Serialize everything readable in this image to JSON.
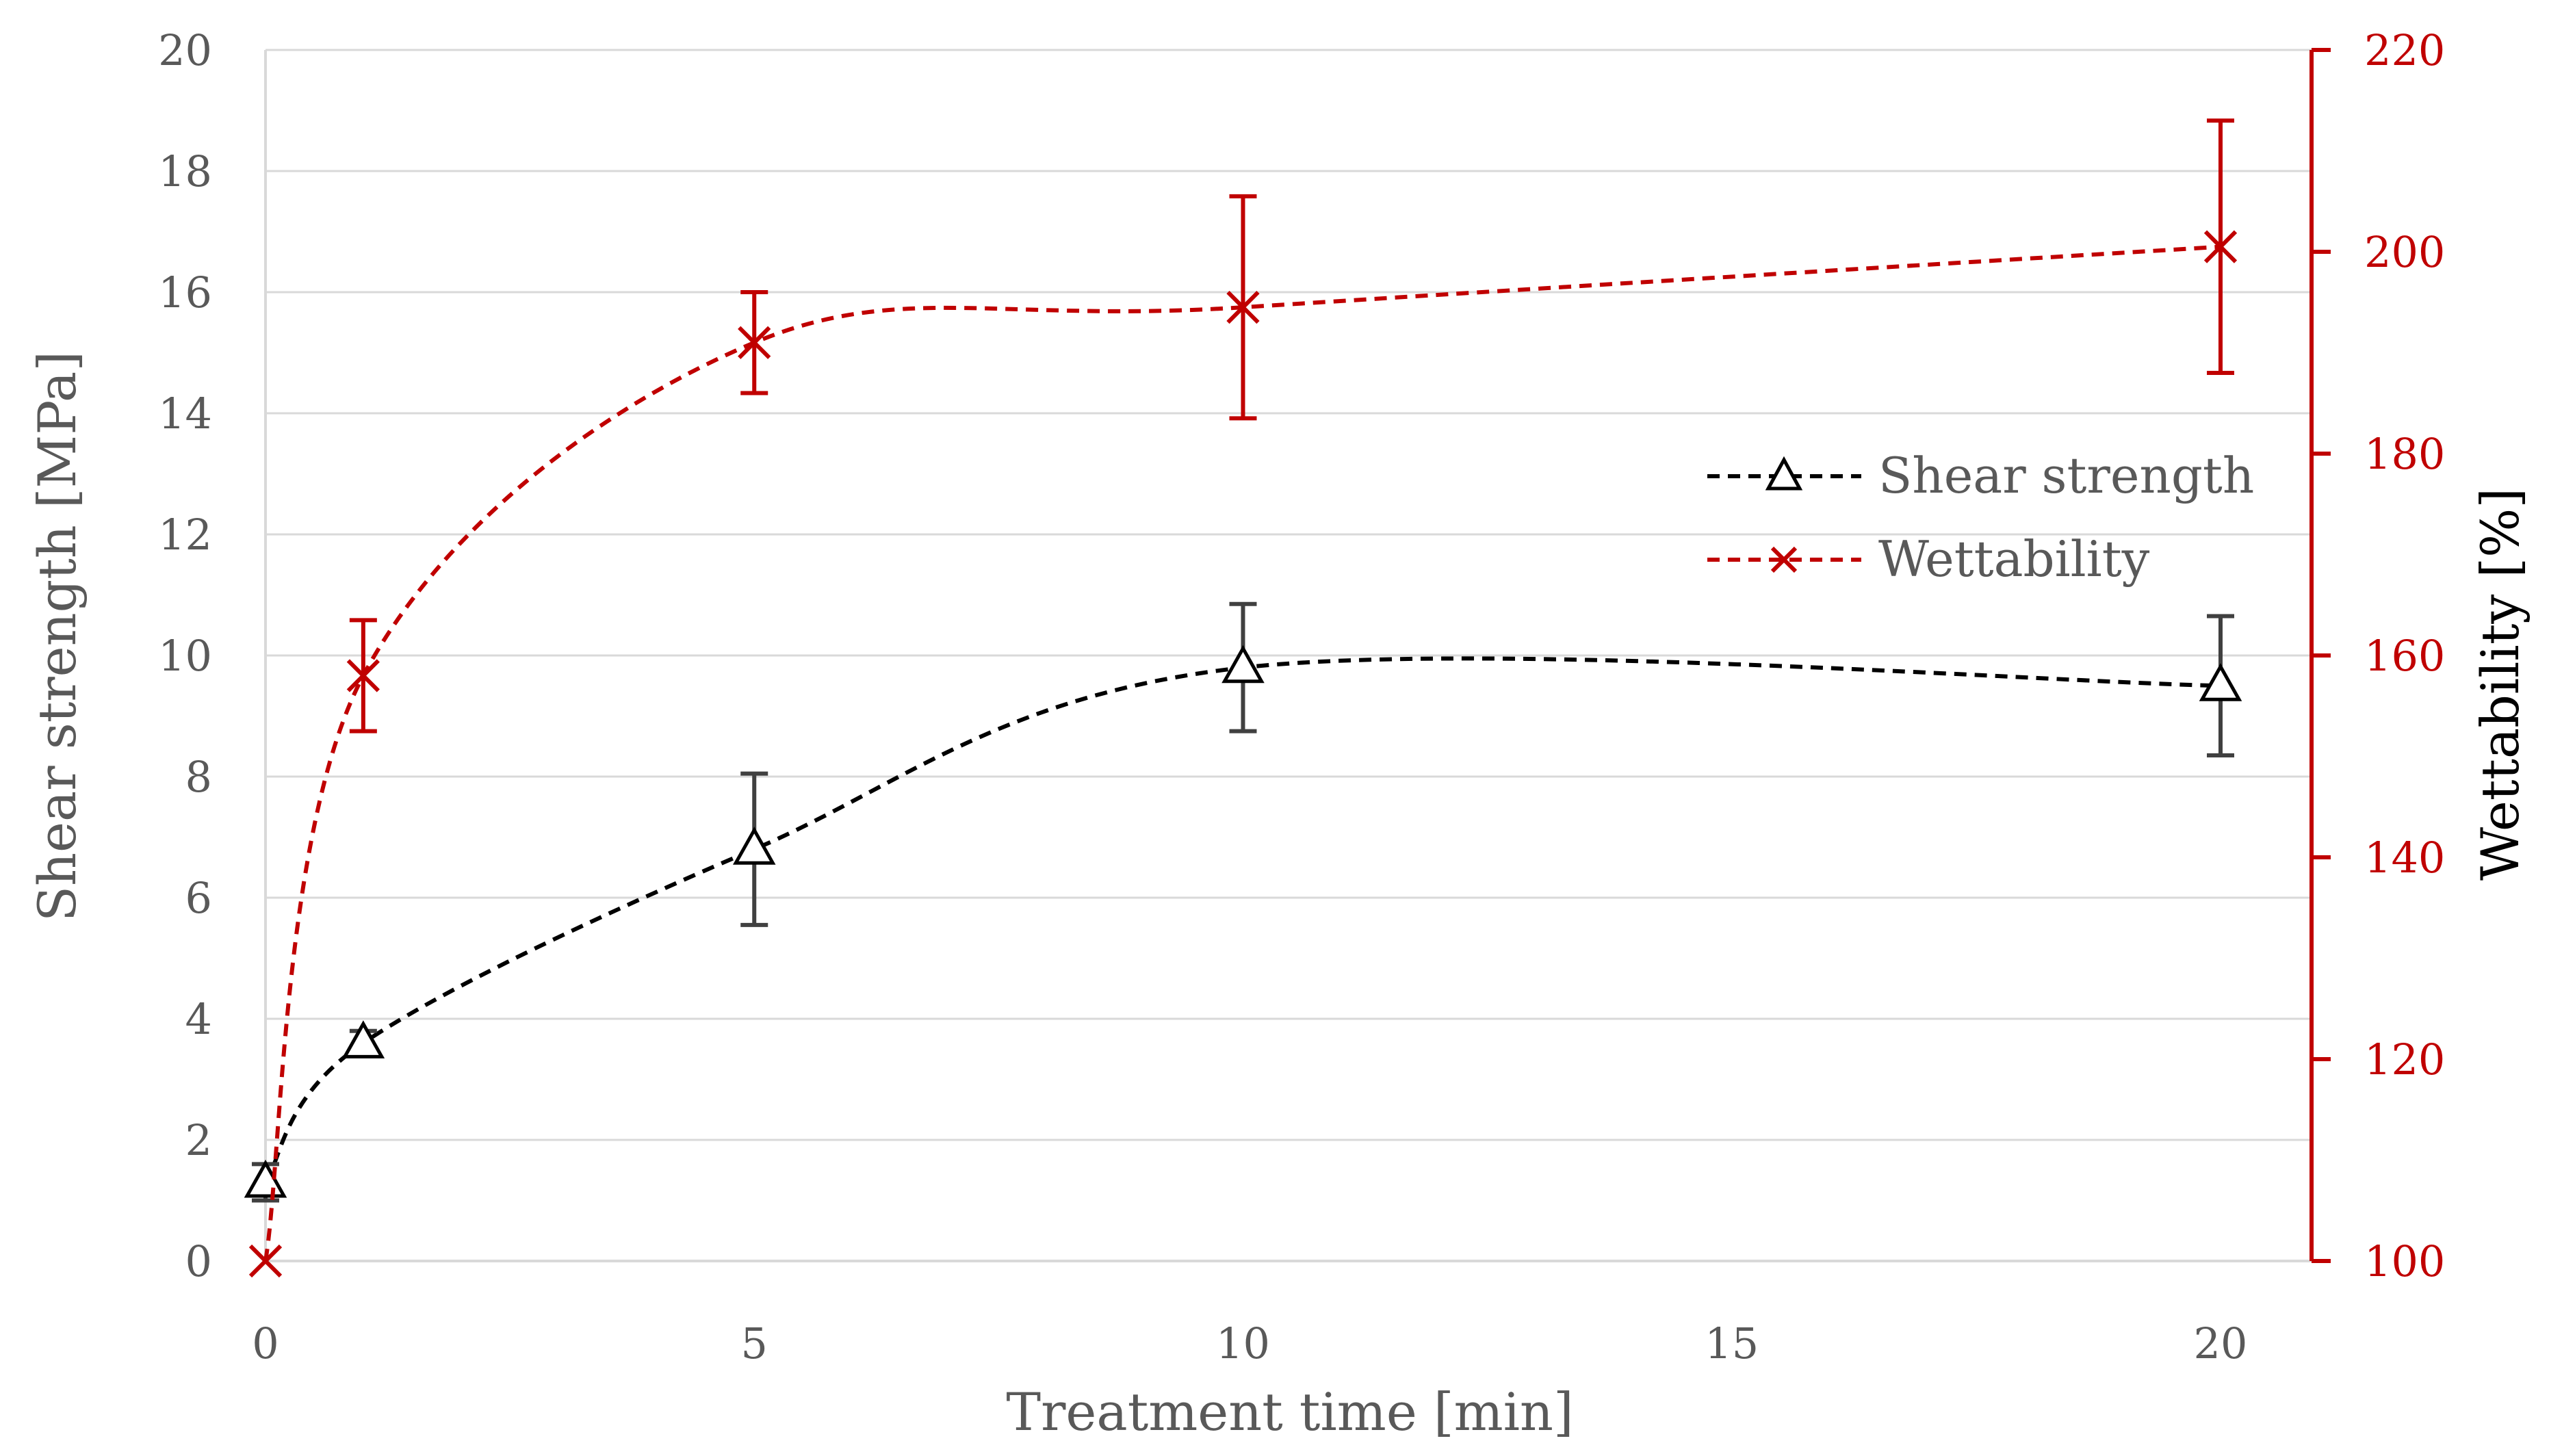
{
  "chart_data": {
    "type": "line",
    "title": "",
    "xlabel": "Treatment time [min]",
    "ylabel_left": "Shear strength [MPa]",
    "ylabel_right": "Wettability [%]",
    "xlim": [
      0,
      21
    ],
    "ylim_left": [
      0,
      20
    ],
    "ylim_right": [
      100,
      220
    ],
    "x_ticks": [
      "0",
      "5",
      "10",
      "15",
      "20"
    ],
    "y_left_ticks": [
      "0",
      "2",
      "4",
      "6",
      "8",
      "10",
      "12",
      "14",
      "16",
      "18",
      "20"
    ],
    "y_right_ticks": [
      "100",
      "120",
      "140",
      "160",
      "180",
      "200",
      "220"
    ],
    "grid": true,
    "legend_position": "right-center",
    "series": [
      {
        "name": "Shear strength",
        "axis": "left",
        "marker": "triangle",
        "line_style": "dashed smooth",
        "color": "#000000",
        "x": [
          0,
          1,
          5,
          10,
          20
        ],
        "values": [
          1.3,
          3.6,
          6.8,
          9.8,
          9.5
        ],
        "error": [
          0.3,
          0.2,
          1.25,
          1.05,
          1.15
        ]
      },
      {
        "name": "Wettability",
        "axis": "right",
        "marker": "x",
        "line_style": "dashed smooth",
        "color": "#c00000",
        "x": [
          0,
          1,
          5,
          10,
          20
        ],
        "values": [
          100,
          158,
          191,
          194.5,
          200.5
        ],
        "error": [
          0,
          5.5,
          5,
          11,
          12.5
        ]
      }
    ]
  }
}
